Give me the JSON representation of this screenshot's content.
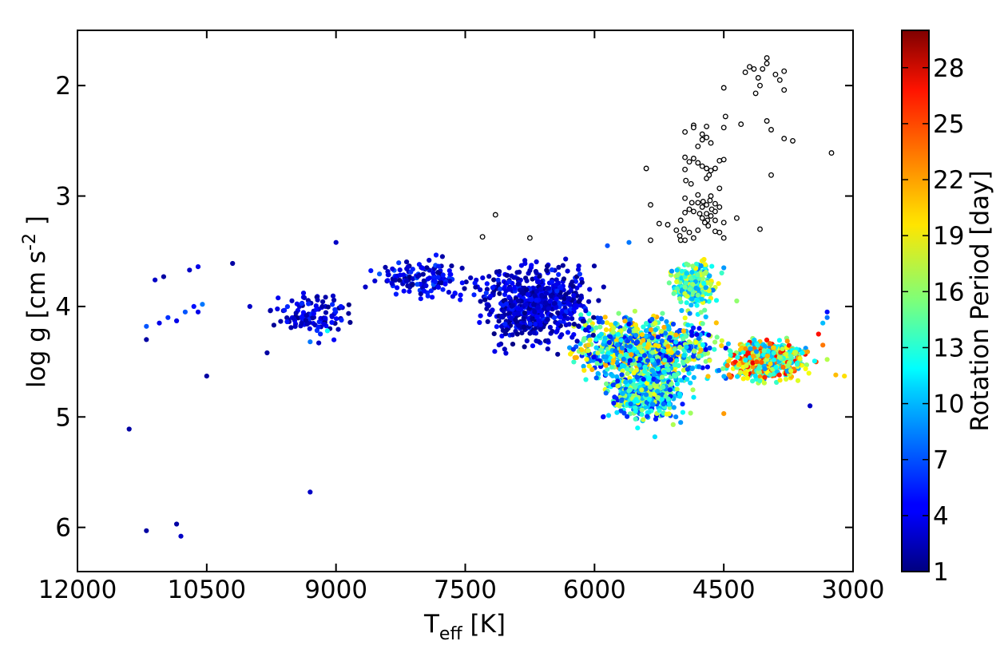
{
  "chart_data": {
    "type": "scatter",
    "x_axis": {
      "label_main": "T",
      "label_sub": "eff",
      "label_unit": " [K]",
      "range": [
        12000,
        3000
      ],
      "inverted": true,
      "ticks": [
        12000,
        10500,
        9000,
        7500,
        6000,
        4500,
        3000
      ],
      "tick_labels": [
        "12000",
        "10500",
        "9000",
        "7500",
        "6000",
        "4500",
        "3000"
      ]
    },
    "y_axis": {
      "label_main": "log g [cm s",
      "label_sup": "-2",
      "label_end": " ]",
      "range": [
        1.5,
        6.4
      ],
      "inverted": true,
      "ticks": [
        2,
        3,
        4,
        5,
        6
      ],
      "tick_labels": [
        "2",
        "3",
        "4",
        "5",
        "6"
      ]
    },
    "colorbar": {
      "label": "Rotation Period [day]",
      "range": [
        1,
        30
      ],
      "ticks": [
        1,
        4,
        7,
        10,
        13,
        16,
        19,
        22,
        25,
        28
      ],
      "tick_labels": [
        "1",
        "4",
        "7",
        "10",
        "13",
        "16",
        "19",
        "22",
        "25",
        "28"
      ],
      "colormap": "jet"
    },
    "series": [
      {
        "marker": "filled-circle",
        "color_by": "Rotation Period",
        "clusters": [
          {
            "teff_range": [
              6500,
              4300
            ],
            "logg_range": [
              4.0,
              4.8
            ],
            "count": 900,
            "period_range": [
              4,
              22
            ]
          },
          {
            "teff_range": [
              6000,
              4800
            ],
            "logg_range": [
              4.5,
              5.1
            ],
            "count": 450,
            "period_range": [
              5,
              19
            ]
          },
          {
            "teff_range": [
              5200,
              4500
            ],
            "logg_range": [
              3.5,
              4.1
            ],
            "count": 260,
            "period_range": [
              8,
              20
            ]
          },
          {
            "teff_range": [
              4600,
              3400
            ],
            "logg_range": [
              4.25,
              4.75
            ],
            "count": 520,
            "period_range": [
              8,
              27
            ]
          },
          {
            "teff_range": [
              7600,
              5800
            ],
            "logg_range": [
              3.5,
              4.45
            ],
            "count": 650,
            "period_range": [
              1,
              6
            ]
          },
          {
            "teff_range": [
              8800,
              7200
            ],
            "logg_range": [
              3.5,
              4.0
            ],
            "count": 140,
            "period_range": [
              1,
              7
            ]
          },
          {
            "teff_range": [
              9900,
              8700
            ],
            "logg_range": [
              3.8,
              4.35
            ],
            "count": 110,
            "period_range": [
              1,
              6
            ]
          }
        ],
        "points": [
          {
            "teff": 11400,
            "logg": 5.11,
            "period": 2
          },
          {
            "teff": 11200,
            "logg": 6.03,
            "period": 2
          },
          {
            "teff": 10850,
            "logg": 5.97,
            "period": 2
          },
          {
            "teff": 10800,
            "logg": 6.08,
            "period": 3
          },
          {
            "teff": 9300,
            "logg": 5.68,
            "period": 3
          },
          {
            "teff": 10500,
            "logg": 4.63,
            "period": 2
          },
          {
            "teff": 9800,
            "logg": 4.42,
            "period": 2
          },
          {
            "teff": 11200,
            "logg": 4.3,
            "period": 2
          },
          {
            "teff": 11200,
            "logg": 4.18,
            "period": 7
          },
          {
            "teff": 11050,
            "logg": 4.15,
            "period": 4
          },
          {
            "teff": 10950,
            "logg": 4.1,
            "period": 6
          },
          {
            "teff": 10850,
            "logg": 4.13,
            "period": 4
          },
          {
            "teff": 10750,
            "logg": 4.05,
            "period": 7
          },
          {
            "teff": 10650,
            "logg": 4.0,
            "period": 5
          },
          {
            "teff": 10550,
            "logg": 3.98,
            "period": 8
          },
          {
            "teff": 10600,
            "logg": 4.05,
            "period": 4
          },
          {
            "teff": 11100,
            "logg": 3.76,
            "period": 3
          },
          {
            "teff": 11000,
            "logg": 3.73,
            "period": 2
          },
          {
            "teff": 10700,
            "logg": 3.67,
            "period": 3
          },
          {
            "teff": 10600,
            "logg": 3.64,
            "period": 4
          },
          {
            "teff": 10200,
            "logg": 3.61,
            "period": 2
          },
          {
            "teff": 10000,
            "logg": 4.0,
            "period": 3
          },
          {
            "teff": 9200,
            "logg": 4.33,
            "period": 3
          },
          {
            "teff": 9100,
            "logg": 4.22,
            "period": 12
          },
          {
            "teff": 9300,
            "logg": 4.32,
            "period": 8
          },
          {
            "teff": 9000,
            "logg": 3.42,
            "period": 3
          },
          {
            "teff": 3100,
            "logg": 4.63,
            "period": 20
          },
          {
            "teff": 3200,
            "logg": 4.62,
            "period": 21
          },
          {
            "teff": 3300,
            "logg": 4.48,
            "period": 17
          },
          {
            "teff": 3350,
            "logg": 4.35,
            "period": 23
          },
          {
            "teff": 3400,
            "logg": 4.25,
            "period": 26
          },
          {
            "teff": 3300,
            "logg": 4.05,
            "period": 5
          },
          {
            "teff": 3300,
            "logg": 4.1,
            "period": 8
          },
          {
            "teff": 3350,
            "logg": 4.15,
            "period": 10
          },
          {
            "teff": 3500,
            "logg": 4.9,
            "period": 3
          },
          {
            "teff": 4500,
            "logg": 4.97,
            "period": 22
          },
          {
            "teff": 5000,
            "logg": 5.05,
            "period": 9
          },
          {
            "teff": 5500,
            "logg": 5.1,
            "period": 12
          },
          {
            "teff": 5300,
            "logg": 5.18,
            "period": 11
          },
          {
            "teff": 5900,
            "logg": 5.0,
            "period": 5
          },
          {
            "teff": 4350,
            "logg": 3.95,
            "period": 16
          },
          {
            "teff": 4500,
            "logg": 3.65,
            "period": 9
          },
          {
            "teff": 5600,
            "logg": 3.42,
            "period": 8
          },
          {
            "teff": 5850,
            "logg": 3.45,
            "period": 7
          }
        ]
      },
      {
        "marker": "open-circle",
        "color": "#000000",
        "points": [
          {
            "teff": 4000,
            "logg": 1.75
          },
          {
            "teff": 4000,
            "logg": 1.8
          },
          {
            "teff": 4050,
            "logg": 1.85
          },
          {
            "teff": 4150,
            "logg": 1.85
          },
          {
            "teff": 4200,
            "logg": 1.83
          },
          {
            "teff": 4250,
            "logg": 1.88
          },
          {
            "teff": 3900,
            "logg": 1.9
          },
          {
            "teff": 3800,
            "logg": 1.87
          },
          {
            "teff": 3850,
            "logg": 1.95
          },
          {
            "teff": 4100,
            "logg": 1.93
          },
          {
            "teff": 4080,
            "logg": 2.0
          },
          {
            "teff": 3800,
            "logg": 2.04
          },
          {
            "teff": 4130,
            "logg": 2.07
          },
          {
            "teff": 4500,
            "logg": 2.02
          },
          {
            "teff": 4480,
            "logg": 2.28
          },
          {
            "teff": 4300,
            "logg": 2.35
          },
          {
            "teff": 4000,
            "logg": 2.32
          },
          {
            "teff": 3950,
            "logg": 2.4
          },
          {
            "teff": 4500,
            "logg": 2.38
          },
          {
            "teff": 3800,
            "logg": 2.48
          },
          {
            "teff": 3700,
            "logg": 2.5
          },
          {
            "teff": 3250,
            "logg": 2.61
          },
          {
            "teff": 3950,
            "logg": 2.81
          },
          {
            "teff": 4080,
            "logg": 3.3
          },
          {
            "teff": 4350,
            "logg": 3.2
          },
          {
            "teff": 4950,
            "logg": 2.42
          },
          {
            "teff": 4850,
            "logg": 2.36
          },
          {
            "teff": 4850,
            "logg": 2.38
          },
          {
            "teff": 4750,
            "logg": 2.44
          },
          {
            "teff": 4700,
            "logg": 2.37
          },
          {
            "teff": 4700,
            "logg": 2.47
          },
          {
            "teff": 4650,
            "logg": 2.52
          },
          {
            "teff": 4750,
            "logg": 2.49
          },
          {
            "teff": 5400,
            "logg": 2.75
          },
          {
            "teff": 4950,
            "logg": 2.65
          },
          {
            "teff": 4900,
            "logg": 2.69
          },
          {
            "teff": 4850,
            "logg": 2.66
          },
          {
            "teff": 4800,
            "logg": 2.7
          },
          {
            "teff": 4750,
            "logg": 2.73
          },
          {
            "teff": 4700,
            "logg": 2.75
          },
          {
            "teff": 4650,
            "logg": 2.77
          },
          {
            "teff": 4550,
            "logg": 2.68
          },
          {
            "teff": 4500,
            "logg": 2.67
          },
          {
            "teff": 4600,
            "logg": 2.75
          },
          {
            "teff": 4950,
            "logg": 2.76
          },
          {
            "teff": 4940,
            "logg": 2.86
          },
          {
            "teff": 4880,
            "logg": 2.89
          },
          {
            "teff": 4700,
            "logg": 2.84
          },
          {
            "teff": 4670,
            "logg": 2.81
          },
          {
            "teff": 4550,
            "logg": 2.93
          },
          {
            "teff": 4800,
            "logg": 2.99
          },
          {
            "teff": 4650,
            "logg": 3.0
          },
          {
            "teff": 4950,
            "logg": 3.02
          },
          {
            "teff": 4870,
            "logg": 3.06
          },
          {
            "teff": 4800,
            "logg": 3.06
          },
          {
            "teff": 4740,
            "logg": 3.05
          },
          {
            "teff": 4700,
            "logg": 3.08
          },
          {
            "teff": 4660,
            "logg": 3.04
          },
          {
            "teff": 4600,
            "logg": 3.07
          },
          {
            "teff": 4550,
            "logg": 3.1
          },
          {
            "teff": 4900,
            "logg": 3.12
          },
          {
            "teff": 4850,
            "logg": 3.14
          },
          {
            "teff": 4780,
            "logg": 3.16
          },
          {
            "teff": 4700,
            "logg": 3.16
          },
          {
            "teff": 4640,
            "logg": 3.12
          },
          {
            "teff": 4600,
            "logg": 3.14
          },
          {
            "teff": 4750,
            "logg": 3.2
          },
          {
            "teff": 4690,
            "logg": 3.22
          },
          {
            "teff": 4650,
            "logg": 3.18
          },
          {
            "teff": 4720,
            "logg": 3.24
          },
          {
            "teff": 4680,
            "logg": 3.27
          },
          {
            "teff": 4600,
            "logg": 3.22
          },
          {
            "teff": 4500,
            "logg": 3.24
          },
          {
            "teff": 5000,
            "logg": 3.22
          },
          {
            "teff": 4950,
            "logg": 3.15
          },
          {
            "teff": 5250,
            "logg": 3.25
          },
          {
            "teff": 5150,
            "logg": 3.26
          },
          {
            "teff": 5050,
            "logg": 3.31
          },
          {
            "teff": 5010,
            "logg": 3.36
          },
          {
            "teff": 4960,
            "logg": 3.3
          },
          {
            "teff": 4900,
            "logg": 3.33
          },
          {
            "teff": 4800,
            "logg": 3.31
          },
          {
            "teff": 4600,
            "logg": 3.32
          },
          {
            "teff": 4550,
            "logg": 3.33
          },
          {
            "teff": 4500,
            "logg": 3.38
          },
          {
            "teff": 4950,
            "logg": 3.4
          },
          {
            "teff": 4850,
            "logg": 3.38
          },
          {
            "teff": 5350,
            "logg": 3.08
          },
          {
            "teff": 5350,
            "logg": 3.4
          },
          {
            "teff": 7150,
            "logg": 3.17
          },
          {
            "teff": 7300,
            "logg": 3.37
          },
          {
            "teff": 6750,
            "logg": 3.38
          },
          {
            "teff": 5000,
            "logg": 3.4
          },
          {
            "teff": 4750,
            "logg": 3.1
          },
          {
            "teff": 4800,
            "logg": 2.55
          }
        ]
      }
    ]
  }
}
